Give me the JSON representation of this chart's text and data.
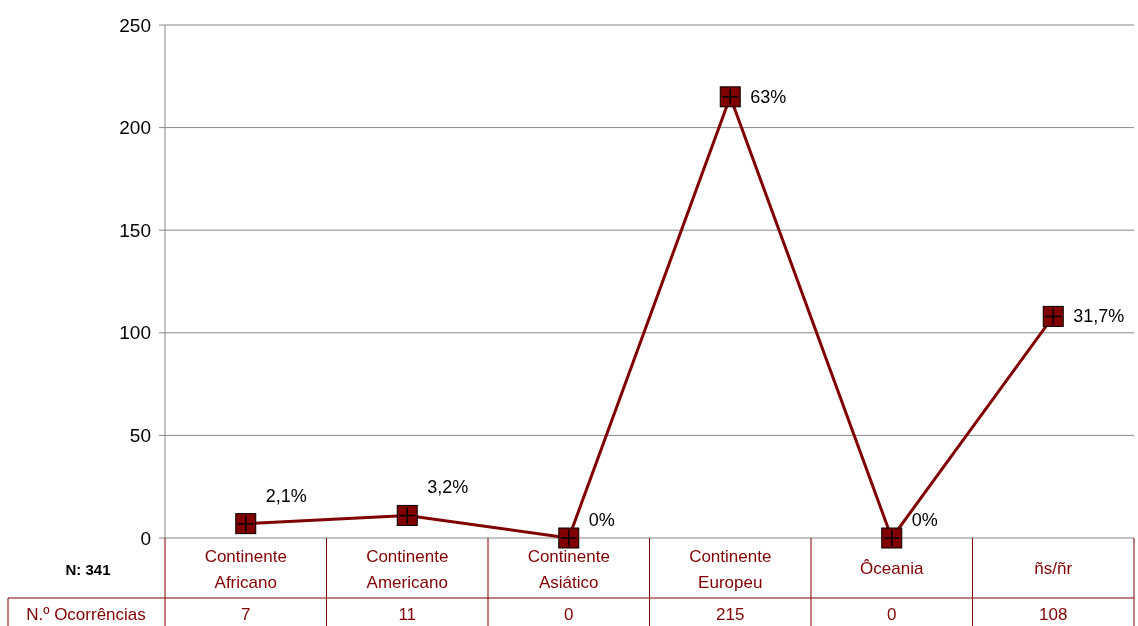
{
  "chart_data": {
    "type": "line",
    "categories": [
      "Continente Africano",
      "Continente Americano",
      "Continente Asiático",
      "Continente Europeu",
      "Ôceania",
      "ñs/ñr"
    ],
    "series": [
      {
        "name": "N.º Ocorrências",
        "color": "#800000",
        "values": [
          7,
          11,
          0,
          215,
          0,
          108
        ],
        "value_labels": [
          "7",
          "11",
          "0",
          "215",
          "0",
          "108"
        ]
      }
    ],
    "ylim": [
      0,
      250
    ],
    "yticks": [
      0,
      50,
      100,
      150,
      200,
      250
    ],
    "grid": "y",
    "marker": "square",
    "line_style": "solid",
    "legend": "bottom left",
    "annotations": [
      "N: 341",
      {
        "text": "2,1%",
        "x": "Continente Africano",
        "y": 7
      },
      {
        "text": "3,2%",
        "x": "Continente Americano",
        "y": 11
      },
      {
        "text": "0%",
        "x": "Continente Asiático",
        "y": 0
      },
      {
        "text": "63%",
        "x": "Continente Europeu",
        "y": 215
      },
      {
        "text": "0%",
        "x": "Ôceania",
        "y": 0
      },
      {
        "text": "31,7%",
        "x": "ñs/ñr",
        "y": 108
      }
    ]
  }
}
